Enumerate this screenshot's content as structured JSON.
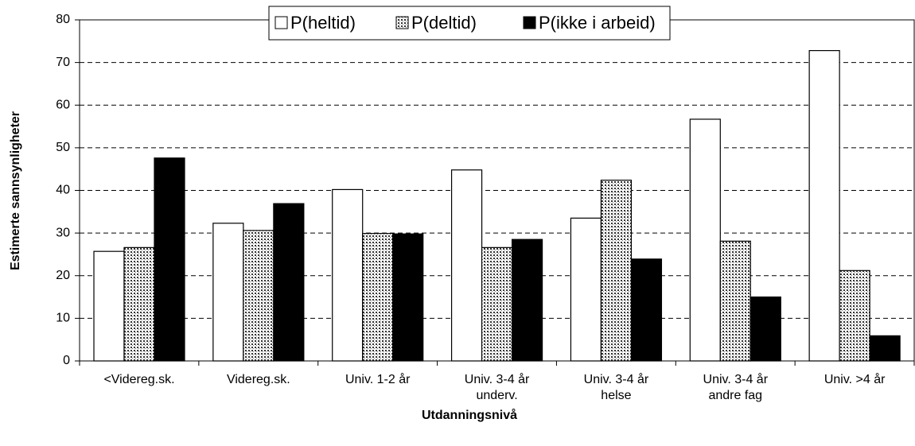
{
  "chart_data": {
    "type": "bar",
    "x_label": "Utdanningsnivå",
    "y_label": "Estimerte sannsynligheter",
    "categories": [
      "<Videreg.sk.",
      "Videreg.sk.",
      "Univ. 1-2 år",
      "Univ. 3-4 år\nunderv.",
      "Univ. 3-4 år\nhelse",
      "Univ. 3-4 år\nandre fag",
      "Univ. >4 år"
    ],
    "series": [
      {
        "name": "P(heltid)",
        "color": "#ffffff",
        "values": [
          25.7,
          32.3,
          40.2,
          44.8,
          33.5,
          56.7,
          72.8
        ]
      },
      {
        "name": "P(deltid)",
        "color": "dotted",
        "values": [
          26.6,
          30.6,
          29.9,
          26.6,
          42.4,
          28.1,
          21.2
        ]
      },
      {
        "name": "P(ikke i arbeid)",
        "color": "#000000",
        "values": [
          47.6,
          36.9,
          29.8,
          28.5,
          23.9,
          15.0,
          5.9
        ]
      }
    ],
    "ylim": [
      0,
      80
    ],
    "yticks": [
      0,
      10,
      20,
      30,
      40,
      50,
      60,
      70,
      80
    ],
    "grid": true,
    "legend": "top"
  }
}
